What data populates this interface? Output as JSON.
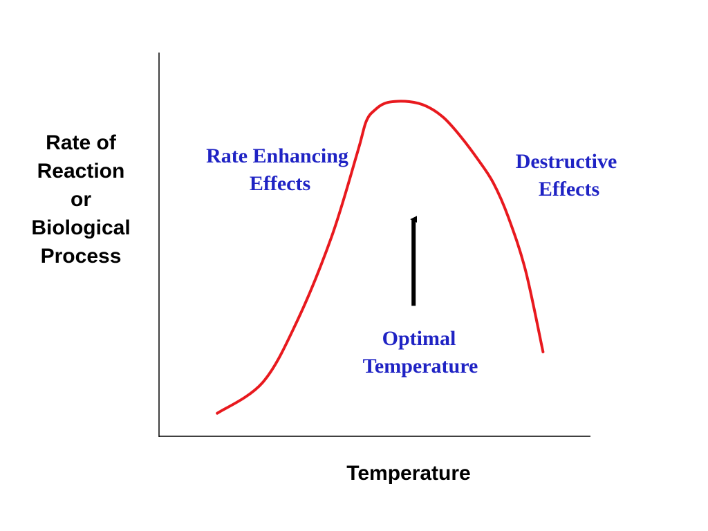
{
  "chart_data": {
    "type": "line",
    "xlabel": "Temperature",
    "ylabel_lines": [
      "Rate of",
      "Reaction",
      "or",
      "Biological",
      "Process"
    ],
    "xlim": [
      0,
      10
    ],
    "ylim": [
      0,
      10
    ],
    "grid": false,
    "series": [
      {
        "x": [
          1.35,
          2.4,
          3.2,
          4.0,
          4.6,
          4.8,
          5.0,
          5.3,
          5.8,
          6.2,
          6.6,
          7.0,
          7.4,
          7.75,
          8.1,
          8.5,
          8.9
        ],
        "y": [
          0.6,
          1.4,
          3.0,
          5.2,
          7.4,
          8.2,
          8.5,
          8.7,
          8.72,
          8.6,
          8.3,
          7.8,
          7.2,
          6.6,
          5.7,
          4.3,
          2.2
        ],
        "color": "#e8191e"
      }
    ],
    "annotations": [
      {
        "lines": [
          "Rate Enhancing",
          "Effects"
        ],
        "color": "#1f23c4"
      },
      {
        "lines": [
          "Destructive",
          "Effects"
        ],
        "color": "#1f23c4"
      },
      {
        "lines": [
          "Optimal",
          "Temperature"
        ],
        "color": "#1f23c4"
      }
    ],
    "optimal_marker": {
      "x": 5.9,
      "y_from": 3.4,
      "y_to": 5.8,
      "color": "#000000"
    }
  }
}
